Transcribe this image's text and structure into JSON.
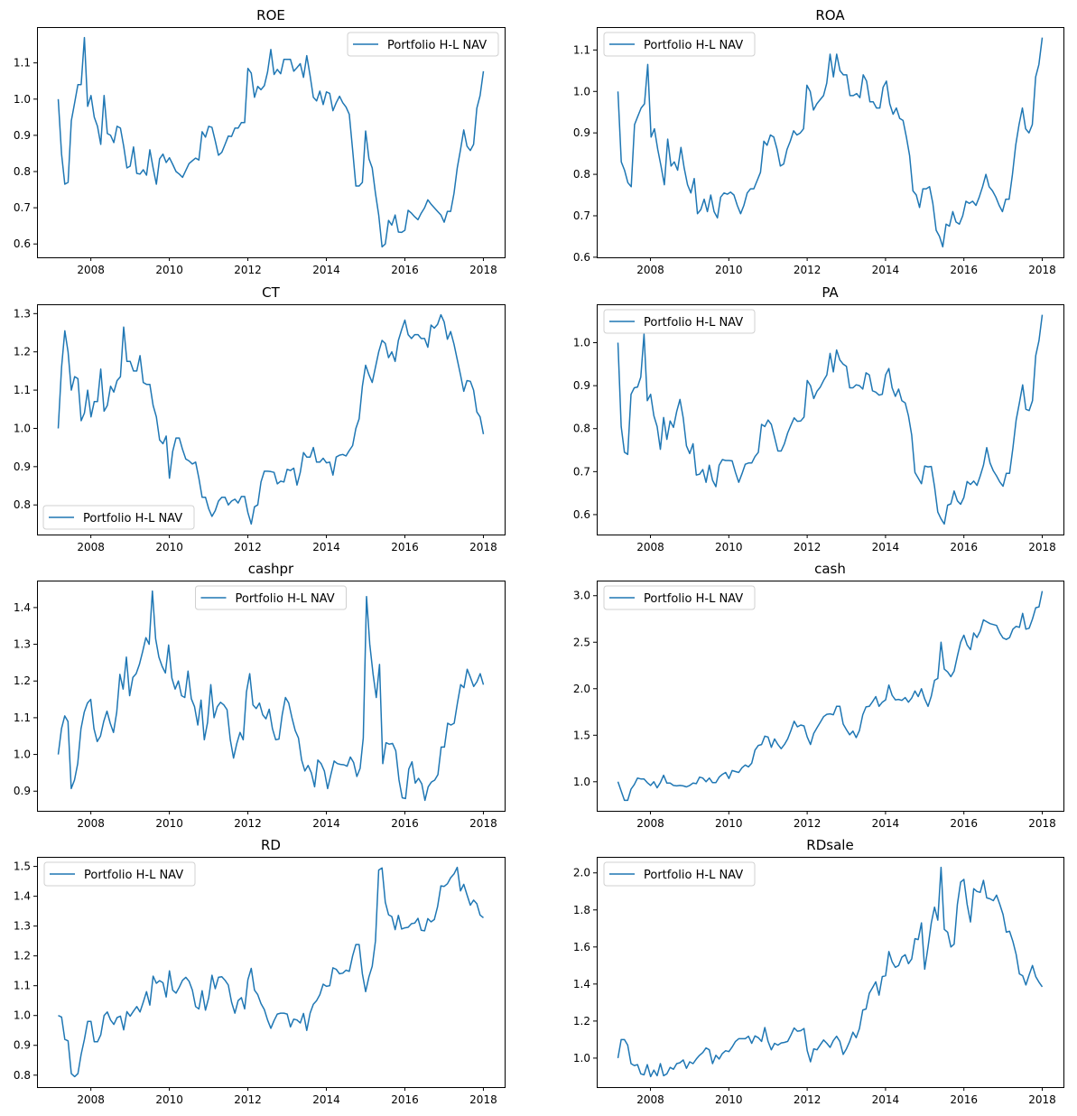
{
  "chart_data": [
    {
      "type": "line",
      "title": "ROE",
      "legend": "Portfolio H-L NAV",
      "legend_loc": "upper right",
      "x_start": 2007.17,
      "x_end": 2018.0,
      "frequency": "monthly",
      "xticks": [
        2008,
        2010,
        2012,
        2014,
        2016,
        2018
      ],
      "yticks": [
        0.6,
        0.7,
        0.8,
        0.9,
        1.0,
        1.1
      ],
      "ytick_labels": [
        "0.6",
        "0.7",
        "0.8",
        "0.9",
        "1.0",
        "1.1"
      ],
      "color": "#1f77b4",
      "values": [
        1.0,
        0.848,
        0.765,
        0.77,
        0.94,
        0.99,
        1.04,
        1.04,
        1.17,
        0.98,
        1.01,
        0.95,
        0.925,
        0.875,
        1.01,
        0.905,
        0.9,
        0.88,
        0.925,
        0.92,
        0.87,
        0.81,
        0.815,
        0.868,
        0.795,
        0.793,
        0.805,
        0.79,
        0.86,
        0.81,
        0.765,
        0.835,
        0.848,
        0.825,
        0.838,
        0.82,
        0.8,
        0.793,
        0.784,
        0.803,
        0.822,
        0.83,
        0.837,
        0.832,
        0.91,
        0.895,
        0.925,
        0.922,
        0.885,
        0.845,
        0.853,
        0.875,
        0.898,
        0.897,
        0.92,
        0.92,
        0.935,
        0.935,
        1.085,
        1.072,
        1.005,
        1.035,
        1.026,
        1.037,
        1.075,
        1.137,
        1.068,
        1.082,
        1.07,
        1.11,
        1.11,
        1.11,
        1.077,
        1.087,
        1.098,
        1.06,
        1.12,
        1.065,
        1.005,
        0.995,
        1.022,
        0.985,
        1.02,
        1.016,
        0.968,
        0.99,
        1.008,
        0.99,
        0.978,
        0.958,
        0.86,
        0.76,
        0.76,
        0.77,
        0.912,
        0.835,
        0.81,
        0.74,
        0.68,
        0.592,
        0.6,
        0.665,
        0.652,
        0.68,
        0.633,
        0.632,
        0.638,
        0.693,
        0.685,
        0.675,
        0.667,
        0.685,
        0.7,
        0.722,
        0.71,
        0.7,
        0.69,
        0.68,
        0.66,
        0.69,
        0.69,
        0.74,
        0.81,
        0.86,
        0.915,
        0.87,
        0.858,
        0.875,
        0.975,
        1.01,
        1.077
      ]
    },
    {
      "type": "line",
      "title": "ROA",
      "legend": "Portfolio H-L NAV",
      "legend_loc": "upper left",
      "x_start": 2007.17,
      "x_end": 2018.0,
      "frequency": "monthly",
      "xticks": [
        2008,
        2010,
        2012,
        2014,
        2016,
        2018
      ],
      "yticks": [
        0.6,
        0.7,
        0.8,
        0.9,
        1.0,
        1.1
      ],
      "ytick_labels": [
        "0.6",
        "0.7",
        "0.8",
        "0.9",
        "1.0",
        "1.1"
      ],
      "color": "#1f77b4",
      "values": [
        1.0,
        0.83,
        0.81,
        0.78,
        0.77,
        0.92,
        0.94,
        0.96,
        0.97,
        1.065,
        0.89,
        0.91,
        0.86,
        0.82,
        0.775,
        0.885,
        0.82,
        0.83,
        0.81,
        0.865,
        0.815,
        0.775,
        0.755,
        0.79,
        0.705,
        0.715,
        0.74,
        0.71,
        0.75,
        0.71,
        0.695,
        0.745,
        0.755,
        0.752,
        0.757,
        0.75,
        0.725,
        0.705,
        0.725,
        0.755,
        0.765,
        0.765,
        0.785,
        0.805,
        0.88,
        0.87,
        0.895,
        0.89,
        0.86,
        0.82,
        0.825,
        0.86,
        0.88,
        0.905,
        0.895,
        0.9,
        0.91,
        1.015,
        1.0,
        0.955,
        0.97,
        0.98,
        0.99,
        1.02,
        1.09,
        1.035,
        1.09,
        1.05,
        1.04,
        1.04,
        0.99,
        0.99,
        0.995,
        0.985,
        1.04,
        1.025,
        0.975,
        0.975,
        0.96,
        0.96,
        1.01,
        1.025,
        0.97,
        0.945,
        0.96,
        0.935,
        0.93,
        0.89,
        0.845,
        0.76,
        0.75,
        0.72,
        0.765,
        0.765,
        0.77,
        0.73,
        0.665,
        0.65,
        0.625,
        0.68,
        0.675,
        0.71,
        0.685,
        0.68,
        0.7,
        0.735,
        0.73,
        0.735,
        0.725,
        0.745,
        0.77,
        0.8,
        0.77,
        0.76,
        0.745,
        0.725,
        0.71,
        0.74,
        0.74,
        0.8,
        0.87,
        0.92,
        0.96,
        0.91,
        0.9,
        0.92,
        1.035,
        1.065,
        1.13
      ]
    },
    {
      "type": "line",
      "title": "CT",
      "legend": "Portfolio H-L NAV",
      "legend_loc": "lower left",
      "x_start": 2007.17,
      "x_end": 2018.0,
      "frequency": "monthly",
      "xticks": [
        2008,
        2010,
        2012,
        2014,
        2016,
        2018
      ],
      "yticks": [
        0.8,
        0.9,
        1.0,
        1.1,
        1.2,
        1.3
      ],
      "ytick_labels": [
        "0.8",
        "0.9",
        "1.0",
        "1.1",
        "1.2",
        "1.3"
      ],
      "color": "#1f77b4",
      "values": [
        1.0,
        1.16,
        1.255,
        1.2,
        1.1,
        1.135,
        1.13,
        1.02,
        1.04,
        1.1,
        1.03,
        1.07,
        1.07,
        1.155,
        1.045,
        1.06,
        1.11,
        1.095,
        1.125,
        1.135,
        1.265,
        1.175,
        1.175,
        1.15,
        1.15,
        1.19,
        1.12,
        1.115,
        1.115,
        1.06,
        1.03,
        0.97,
        0.96,
        0.98,
        0.87,
        0.94,
        0.975,
        0.975,
        0.945,
        0.92,
        0.915,
        0.907,
        0.912,
        0.87,
        0.82,
        0.82,
        0.79,
        0.77,
        0.785,
        0.81,
        0.82,
        0.82,
        0.8,
        0.81,
        0.815,
        0.805,
        0.822,
        0.822,
        0.78,
        0.75,
        0.795,
        0.8,
        0.86,
        0.888,
        0.888,
        0.887,
        0.885,
        0.855,
        0.862,
        0.86,
        0.893,
        0.89,
        0.896,
        0.852,
        0.885,
        0.937,
        0.925,
        0.925,
        0.95,
        0.912,
        0.912,
        0.922,
        0.91,
        0.912,
        0.878,
        0.925,
        0.93,
        0.932,
        0.928,
        0.942,
        0.955,
        1.0,
        1.025,
        1.11,
        1.165,
        1.14,
        1.12,
        1.16,
        1.2,
        1.23,
        1.222,
        1.185,
        1.2,
        1.175,
        1.23,
        1.258,
        1.283,
        1.245,
        1.235,
        1.245,
        1.245,
        1.235,
        1.235,
        1.212,
        1.27,
        1.262,
        1.272,
        1.297,
        1.278,
        1.233,
        1.253,
        1.22,
        1.18,
        1.14,
        1.097,
        1.125,
        1.123,
        1.1,
        1.043,
        1.03,
        0.985
      ]
    },
    {
      "type": "line",
      "title": "PA",
      "legend": "Portfolio H-L NAV",
      "legend_loc": "upper left",
      "x_start": 2007.17,
      "x_end": 2018.0,
      "frequency": "monthly",
      "xticks": [
        2008,
        2010,
        2012,
        2014,
        2016,
        2018
      ],
      "yticks": [
        0.6,
        0.7,
        0.8,
        0.9,
        1.0
      ],
      "ytick_labels": [
        "0.6",
        "0.7",
        "0.8",
        "0.9",
        "1.0"
      ],
      "color": "#1f77b4",
      "values": [
        1.0,
        0.805,
        0.745,
        0.74,
        0.88,
        0.895,
        0.897,
        0.92,
        1.02,
        0.865,
        0.88,
        0.83,
        0.805,
        0.752,
        0.826,
        0.775,
        0.818,
        0.803,
        0.84,
        0.868,
        0.825,
        0.76,
        0.742,
        0.765,
        0.692,
        0.694,
        0.705,
        0.675,
        0.715,
        0.68,
        0.665,
        0.715,
        0.728,
        0.726,
        0.726,
        0.725,
        0.698,
        0.675,
        0.695,
        0.717,
        0.72,
        0.72,
        0.735,
        0.745,
        0.81,
        0.805,
        0.82,
        0.81,
        0.78,
        0.748,
        0.748,
        0.765,
        0.79,
        0.808,
        0.825,
        0.817,
        0.818,
        0.827,
        0.912,
        0.9,
        0.87,
        0.887,
        0.897,
        0.912,
        0.925,
        0.975,
        0.932,
        0.983,
        0.96,
        0.95,
        0.945,
        0.895,
        0.895,
        0.902,
        0.9,
        0.892,
        0.93,
        0.925,
        0.888,
        0.885,
        0.878,
        0.88,
        0.925,
        0.94,
        0.895,
        0.875,
        0.892,
        0.865,
        0.86,
        0.83,
        0.785,
        0.698,
        0.685,
        0.672,
        0.713,
        0.711,
        0.712,
        0.665,
        0.606,
        0.59,
        0.578,
        0.622,
        0.625,
        0.655,
        0.632,
        0.624,
        0.64,
        0.677,
        0.67,
        0.678,
        0.668,
        0.69,
        0.715,
        0.756,
        0.72,
        0.702,
        0.69,
        0.676,
        0.666,
        0.696,
        0.696,
        0.755,
        0.82,
        0.86,
        0.902,
        0.845,
        0.842,
        0.865,
        0.97,
        1.005,
        1.065
      ]
    },
    {
      "type": "line",
      "title": "cashpr",
      "legend": "Portfolio H-L NAV",
      "legend_loc": "upper center",
      "x_start": 2007.17,
      "x_end": 2018.0,
      "frequency": "monthly",
      "xticks": [
        2008,
        2010,
        2012,
        2014,
        2016,
        2018
      ],
      "yticks": [
        0.9,
        1.0,
        1.1,
        1.2,
        1.3,
        1.4
      ],
      "ytick_labels": [
        "0.9",
        "1.0",
        "1.1",
        "1.2",
        "1.3",
        "1.4"
      ],
      "color": "#1f77b4",
      "values": [
        1.0,
        1.07,
        1.105,
        1.09,
        0.907,
        0.93,
        0.975,
        1.07,
        1.115,
        1.14,
        1.15,
        1.07,
        1.035,
        1.05,
        1.09,
        1.118,
        1.085,
        1.06,
        1.115,
        1.218,
        1.178,
        1.265,
        1.16,
        1.21,
        1.22,
        1.245,
        1.28,
        1.318,
        1.3,
        1.445,
        1.315,
        1.265,
        1.24,
        1.222,
        1.298,
        1.208,
        1.178,
        1.2,
        1.16,
        1.155,
        1.227,
        1.152,
        1.13,
        1.08,
        1.148,
        1.04,
        1.087,
        1.19,
        1.1,
        1.13,
        1.142,
        1.135,
        1.122,
        1.04,
        0.99,
        1.03,
        1.06,
        1.04,
        1.17,
        1.22,
        1.135,
        1.125,
        1.14,
        1.108,
        1.097,
        1.123,
        1.07,
        1.04,
        1.042,
        1.108,
        1.155,
        1.14,
        1.1,
        1.065,
        1.045,
        0.985,
        0.955,
        0.97,
        0.95,
        0.912,
        0.985,
        0.975,
        0.955,
        0.907,
        0.945,
        0.982,
        0.975,
        0.973,
        0.972,
        0.968,
        0.993,
        0.978,
        0.94,
        0.962,
        1.045,
        1.43,
        1.3,
        1.22,
        1.155,
        1.245,
        0.975,
        1.032,
        1.028,
        1.03,
        1.01,
        0.93,
        0.882,
        0.88,
        0.96,
        0.98,
        0.922,
        0.935,
        0.92,
        0.875,
        0.912,
        0.925,
        0.93,
        0.945,
        1.02,
        1.02,
        1.085,
        1.08,
        1.085,
        1.14,
        1.19,
        1.182,
        1.232,
        1.21,
        1.185,
        1.198,
        1.22,
        1.19
      ]
    },
    {
      "type": "line",
      "title": "cash",
      "legend": "Portfolio H-L NAV",
      "legend_loc": "upper left",
      "x_start": 2007.17,
      "x_end": 2018.0,
      "frequency": "monthly",
      "xticks": [
        2008,
        2010,
        2012,
        2014,
        2016,
        2018
      ],
      "yticks": [
        1.0,
        1.5,
        2.0,
        2.5,
        3.0
      ],
      "ytick_labels": [
        "1.0",
        "1.5",
        "2.0",
        "2.5",
        "3.0"
      ],
      "color": "#1f77b4",
      "values": [
        1.0,
        0.9,
        0.8,
        0.8,
        0.92,
        0.97,
        1.04,
        1.03,
        1.03,
        0.99,
        0.96,
        1.0,
        0.935,
        0.99,
        1.07,
        0.985,
        0.985,
        0.96,
        0.955,
        0.96,
        0.955,
        0.945,
        0.96,
        0.985,
        0.98,
        1.05,
        1.04,
        1.0,
        1.04,
        0.99,
        0.99,
        1.05,
        1.08,
        1.1,
        1.035,
        1.12,
        1.11,
        1.1,
        1.15,
        1.18,
        1.16,
        1.2,
        1.34,
        1.39,
        1.4,
        1.49,
        1.48,
        1.37,
        1.46,
        1.4,
        1.355,
        1.4,
        1.46,
        1.55,
        1.65,
        1.59,
        1.61,
        1.6,
        1.48,
        1.4,
        1.52,
        1.58,
        1.64,
        1.7,
        1.725,
        1.73,
        1.72,
        1.81,
        1.81,
        1.62,
        1.56,
        1.505,
        1.545,
        1.475,
        1.55,
        1.72,
        1.805,
        1.81,
        1.86,
        1.915,
        1.81,
        1.855,
        1.88,
        2.04,
        1.93,
        1.88,
        1.885,
        1.875,
        1.905,
        1.855,
        1.9,
        1.975,
        1.915,
        2.0,
        1.89,
        1.81,
        1.92,
        2.09,
        2.11,
        2.5,
        2.21,
        2.18,
        2.13,
        2.19,
        2.35,
        2.5,
        2.575,
        2.47,
        2.42,
        2.6,
        2.55,
        2.62,
        2.74,
        2.72,
        2.7,
        2.69,
        2.68,
        2.6,
        2.545,
        2.53,
        2.55,
        2.64,
        2.67,
        2.66,
        2.81,
        2.64,
        2.65,
        2.75,
        2.87,
        2.88,
        3.05
      ]
    },
    {
      "type": "line",
      "title": "RD",
      "legend": "Portfolio H-L NAV",
      "legend_loc": "upper left",
      "x_start": 2007.17,
      "x_end": 2018.0,
      "frequency": "monthly",
      "xticks": [
        2008,
        2010,
        2012,
        2014,
        2016,
        2018
      ],
      "yticks": [
        0.8,
        0.9,
        1.0,
        1.1,
        1.2,
        1.3,
        1.4,
        1.5
      ],
      "ytick_labels": [
        "0.8",
        "0.9",
        "1.0",
        "1.1",
        "1.2",
        "1.3",
        "1.4",
        "1.5"
      ],
      "color": "#1f77b4",
      "values": [
        1.0,
        0.995,
        0.92,
        0.915,
        0.805,
        0.795,
        0.805,
        0.87,
        0.92,
        0.98,
        0.98,
        0.912,
        0.912,
        0.935,
        1.0,
        1.012,
        0.985,
        0.97,
        0.993,
        0.998,
        0.952,
        1.013,
        0.998,
        1.015,
        1.03,
        1.012,
        1.045,
        1.08,
        1.035,
        1.132,
        1.108,
        1.117,
        1.11,
        1.062,
        1.15,
        1.085,
        1.075,
        1.095,
        1.118,
        1.128,
        1.115,
        1.085,
        1.03,
        1.022,
        1.083,
        1.018,
        1.06,
        1.135,
        1.09,
        1.128,
        1.13,
        1.118,
        1.102,
        1.045,
        1.008,
        1.05,
        1.06,
        1.022,
        1.12,
        1.158,
        1.085,
        1.07,
        1.04,
        1.02,
        0.985,
        0.957,
        0.983,
        1.005,
        1.008,
        1.008,
        1.005,
        0.962,
        0.988,
        0.985,
        0.975,
        1.007,
        0.95,
        1.008,
        1.038,
        1.05,
        1.07,
        1.105,
        1.098,
        1.1,
        1.16,
        1.155,
        1.14,
        1.142,
        1.152,
        1.148,
        1.2,
        1.238,
        1.238,
        1.14,
        1.08,
        1.13,
        1.165,
        1.25,
        1.488,
        1.495,
        1.38,
        1.338,
        1.332,
        1.288,
        1.336,
        1.29,
        1.294,
        1.296,
        1.308,
        1.31,
        1.326,
        1.286,
        1.284,
        1.325,
        1.314,
        1.322,
        1.365,
        1.435,
        1.433,
        1.442,
        1.462,
        1.475,
        1.497,
        1.418,
        1.44,
        1.405,
        1.37,
        1.387,
        1.375,
        1.337,
        1.328
      ]
    },
    {
      "type": "line",
      "title": "RDsale",
      "legend": "Portfolio H-L NAV",
      "legend_loc": "upper left",
      "x_start": 2007.17,
      "x_end": 2018.0,
      "frequency": "monthly",
      "xticks": [
        2008,
        2010,
        2012,
        2014,
        2016,
        2018
      ],
      "yticks": [
        1.0,
        1.2,
        1.4,
        1.6,
        1.8,
        2.0
      ],
      "ytick_labels": [
        "1.0",
        "1.2",
        "1.4",
        "1.6",
        "1.8",
        "2.0"
      ],
      "color": "#1f77b4",
      "values": [
        1.0,
        1.1,
        1.1,
        1.07,
        0.97,
        0.96,
        0.965,
        0.915,
        0.91,
        0.965,
        0.9,
        0.935,
        0.905,
        0.97,
        0.905,
        0.915,
        0.95,
        0.94,
        0.97,
        0.975,
        0.99,
        0.945,
        0.98,
        0.97,
        0.995,
        1.015,
        1.03,
        1.055,
        1.045,
        0.97,
        1.015,
        0.995,
        1.025,
        1.04,
        1.035,
        1.06,
        1.09,
        1.105,
        1.105,
        1.105,
        1.118,
        1.08,
        1.12,
        1.11,
        1.09,
        1.165,
        1.09,
        1.045,
        1.08,
        1.07,
        1.082,
        1.085,
        1.09,
        1.125,
        1.163,
        1.145,
        1.148,
        1.16,
        1.04,
        0.98,
        1.05,
        1.045,
        1.072,
        1.098,
        1.08,
        1.058,
        1.095,
        1.118,
        1.09,
        1.02,
        1.05,
        1.09,
        1.14,
        1.11,
        1.16,
        1.26,
        1.265,
        1.35,
        1.38,
        1.412,
        1.34,
        1.44,
        1.445,
        1.575,
        1.52,
        1.49,
        1.5,
        1.545,
        1.558,
        1.51,
        1.535,
        1.645,
        1.64,
        1.73,
        1.48,
        1.6,
        1.73,
        1.815,
        1.745,
        2.03,
        1.695,
        1.68,
        1.6,
        1.615,
        1.83,
        1.95,
        1.965,
        1.83,
        1.735,
        1.915,
        1.9,
        1.895,
        1.96,
        1.865,
        1.86,
        1.85,
        1.88,
        1.83,
        1.775,
        1.68,
        1.685,
        1.63,
        1.56,
        1.455,
        1.445,
        1.395,
        1.45,
        1.5,
        1.44,
        1.41,
        1.385
      ]
    }
  ]
}
